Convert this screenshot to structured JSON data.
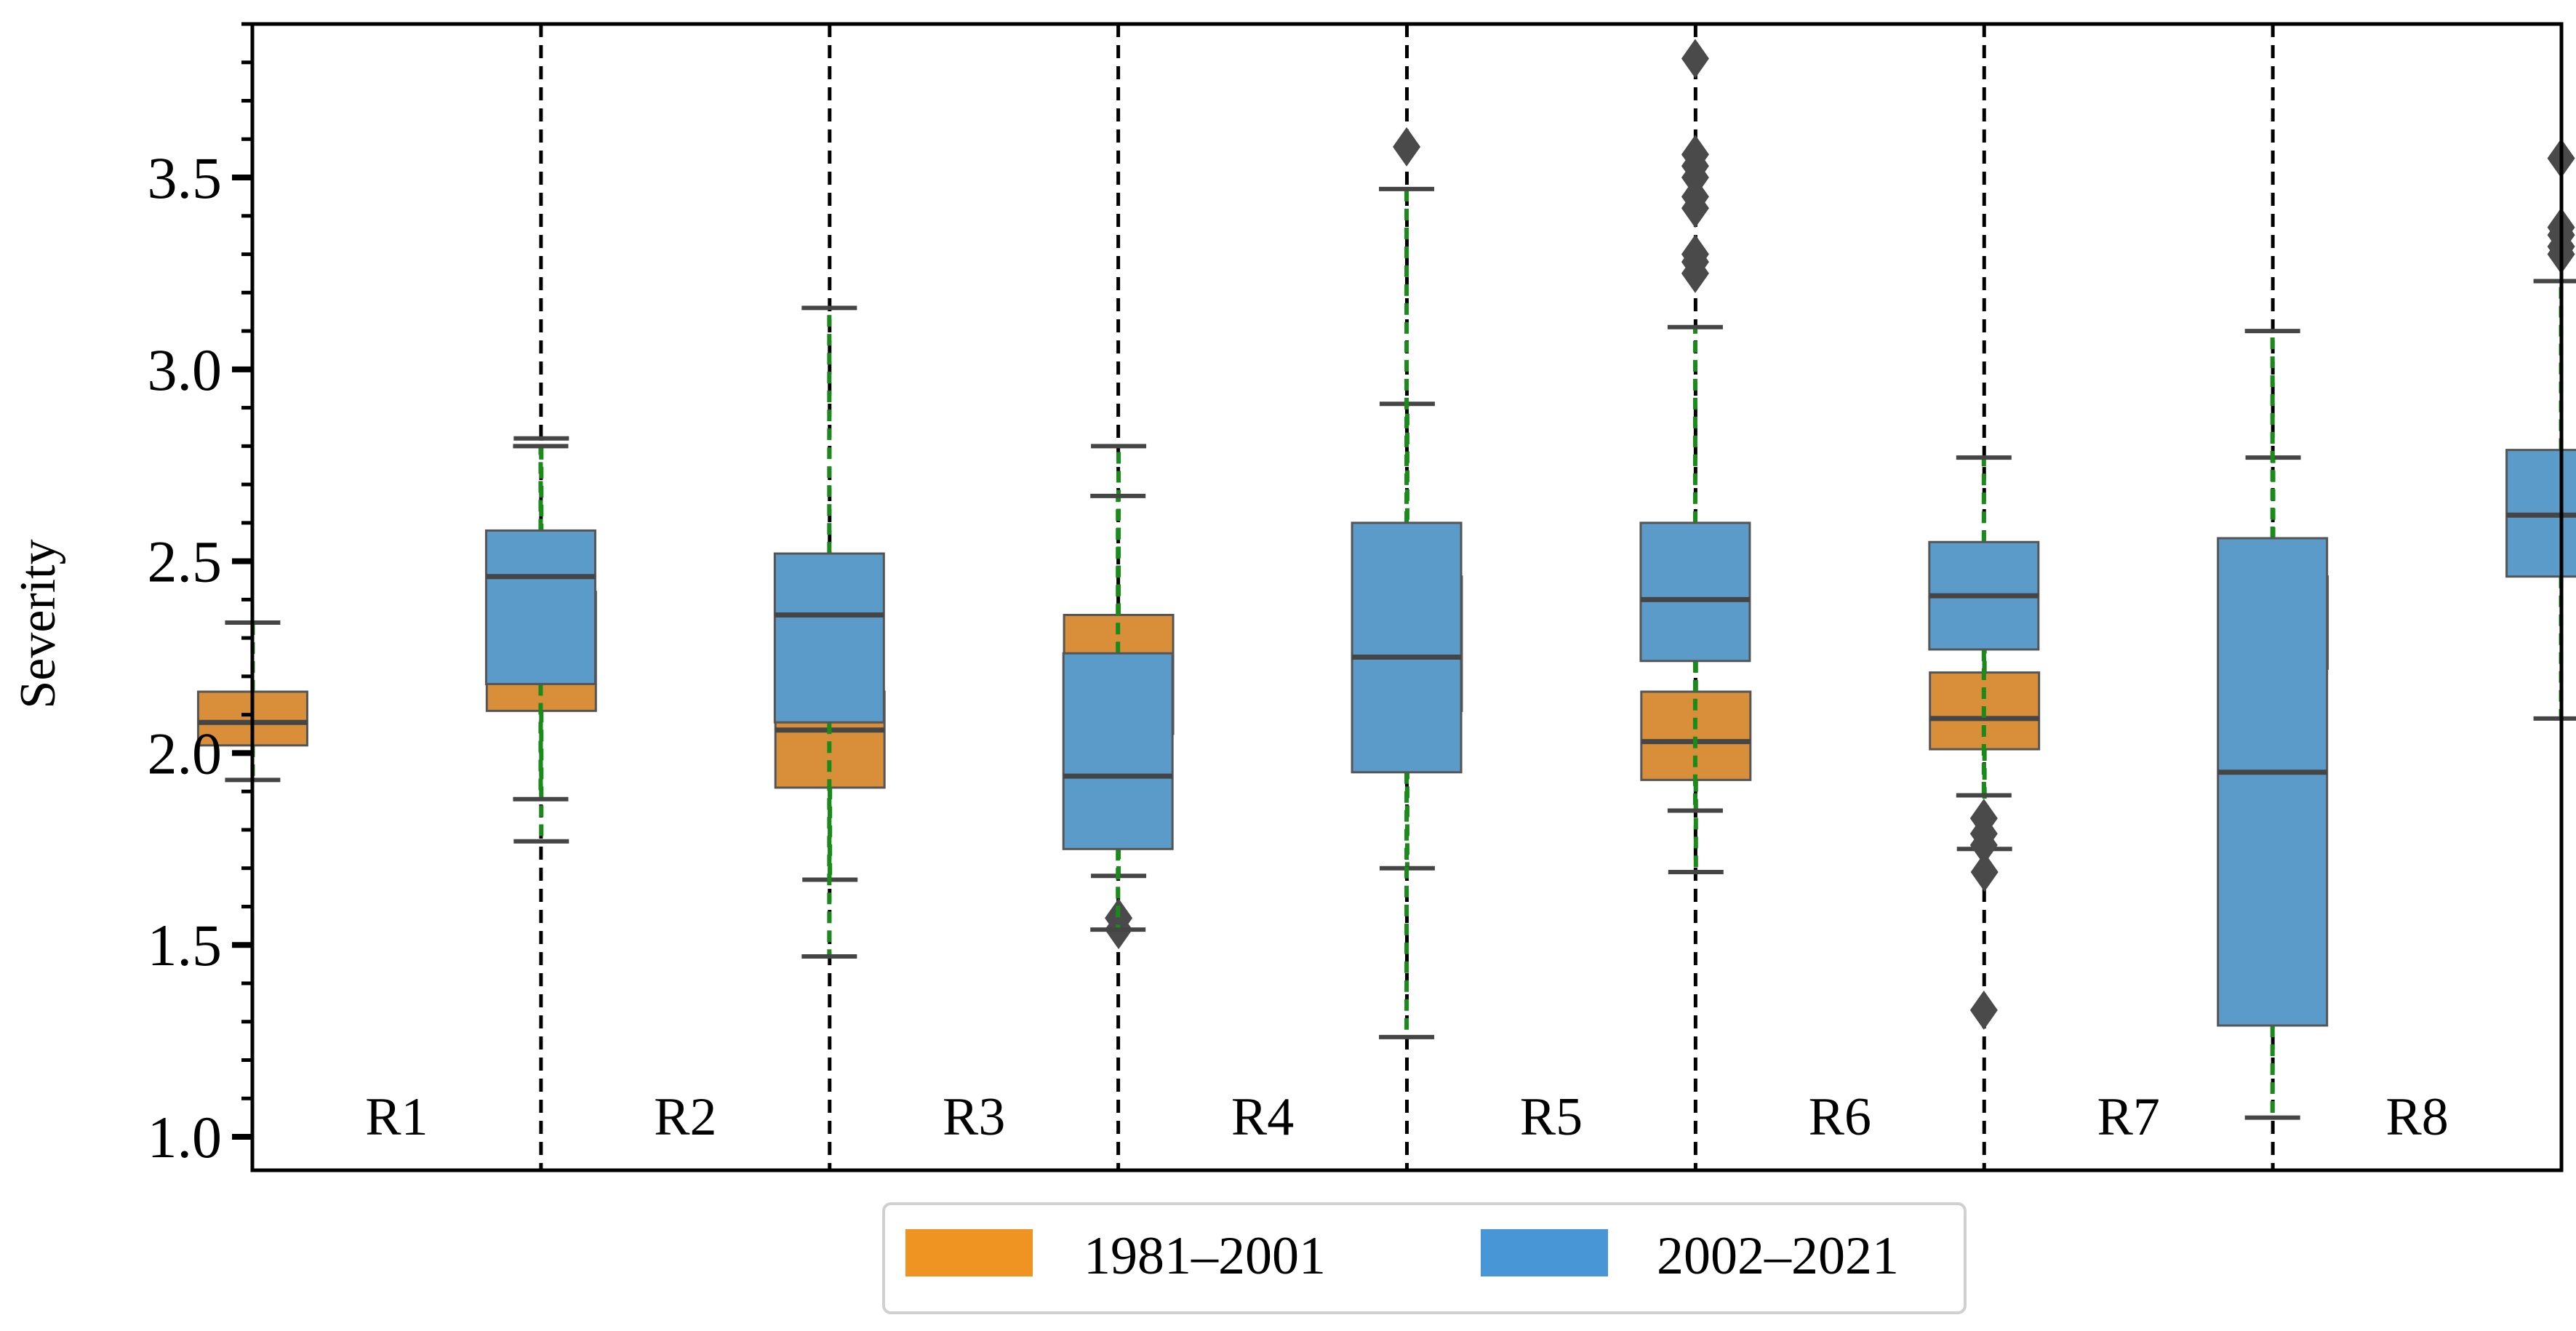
{
  "chart_data": {
    "type": "boxplot",
    "ylabel": "Severity",
    "xlabel": "",
    "ylim": [
      1.0,
      3.9
    ],
    "yticks": [
      "1.0",
      "1.5",
      "2.0",
      "2.5",
      "3.0",
      "3.5"
    ],
    "yminor_step": 0.1,
    "categories": [
      "R1",
      "R2",
      "R3",
      "R4",
      "R5",
      "R6",
      "R7",
      "R8"
    ],
    "legend": {
      "placement": "bottom-center",
      "entries": [
        "1981–2001",
        "2002–2021"
      ]
    },
    "colors": {
      "series1": "#d98f3a",
      "series2": "#5b9bc9",
      "whisker": "#1a8a1a",
      "median": "#454545",
      "outlier": "#4a4a4a",
      "divider": "#000000"
    },
    "series": [
      {
        "name": "1981–2001",
        "boxes": [
          {
            "whisker_low": 1.93,
            "q1": 2.02,
            "median": 2.08,
            "q3": 2.16,
            "whisker_high": 2.34,
            "outliers": []
          },
          {
            "whisker_low": 1.77,
            "q1": 2.11,
            "median": 2.26,
            "q3": 2.42,
            "whisker_high": 2.82,
            "outliers": []
          },
          {
            "whisker_low": 1.67,
            "q1": 1.91,
            "median": 2.06,
            "q3": 2.16,
            "whisker_high": 2.38,
            "outliers": []
          },
          {
            "whisker_low": 1.68,
            "q1": 2.05,
            "median": 2.23,
            "q3": 2.36,
            "whisker_high": 2.8,
            "outliers": [
              1.54,
              1.57
            ]
          },
          {
            "whisker_low": 1.7,
            "q1": 2.11,
            "median": 2.28,
            "q3": 2.46,
            "whisker_high": 2.91,
            "outliers": []
          },
          {
            "whisker_low": 1.69,
            "q1": 1.93,
            "median": 2.03,
            "q3": 2.16,
            "whisker_high": 2.45,
            "outliers": []
          },
          {
            "whisker_low": 1.75,
            "q1": 2.01,
            "median": 2.09,
            "q3": 2.21,
            "whisker_high": 2.5,
            "outliers": [
              1.69
            ]
          },
          {
            "whisker_low": 1.94,
            "q1": 2.22,
            "median": 2.32,
            "q3": 2.46,
            "whisker_high": 2.77,
            "outliers": []
          }
        ]
      },
      {
        "name": "2002–2021",
        "boxes": [
          {
            "whisker_low": 1.88,
            "q1": 2.18,
            "median": 2.46,
            "q3": 2.58,
            "whisker_high": 2.8,
            "outliers": []
          },
          {
            "whisker_low": 1.47,
            "q1": 2.08,
            "median": 2.36,
            "q3": 2.52,
            "whisker_high": 3.16,
            "outliers": []
          },
          {
            "whisker_low": 1.54,
            "q1": 1.75,
            "median": 1.94,
            "q3": 2.26,
            "whisker_high": 2.67,
            "outliers": []
          },
          {
            "whisker_low": 1.26,
            "q1": 1.95,
            "median": 2.25,
            "q3": 2.6,
            "whisker_high": 3.47,
            "outliers": [
              3.58
            ]
          },
          {
            "whisker_low": 1.85,
            "q1": 2.24,
            "median": 2.4,
            "q3": 2.6,
            "whisker_high": 3.11,
            "outliers": [
              3.25,
              3.28,
              3.3,
              3.42,
              3.45,
              3.5,
              3.53,
              3.56,
              3.81
            ]
          },
          {
            "whisker_low": 1.89,
            "q1": 2.27,
            "median": 2.41,
            "q3": 2.55,
            "whisker_high": 2.77,
            "outliers": [
              1.33,
              1.76,
              1.79,
              1.83
            ]
          },
          {
            "whisker_low": 1.05,
            "q1": 1.29,
            "median": 1.95,
            "q3": 2.56,
            "whisker_high": 3.1,
            "outliers": []
          },
          {
            "whisker_low": 2.09,
            "q1": 2.46,
            "median": 2.62,
            "q3": 2.79,
            "whisker_high": 3.23,
            "outliers": [
              3.3,
              3.32,
              3.35,
              3.37,
              3.55
            ]
          }
        ]
      }
    ]
  }
}
